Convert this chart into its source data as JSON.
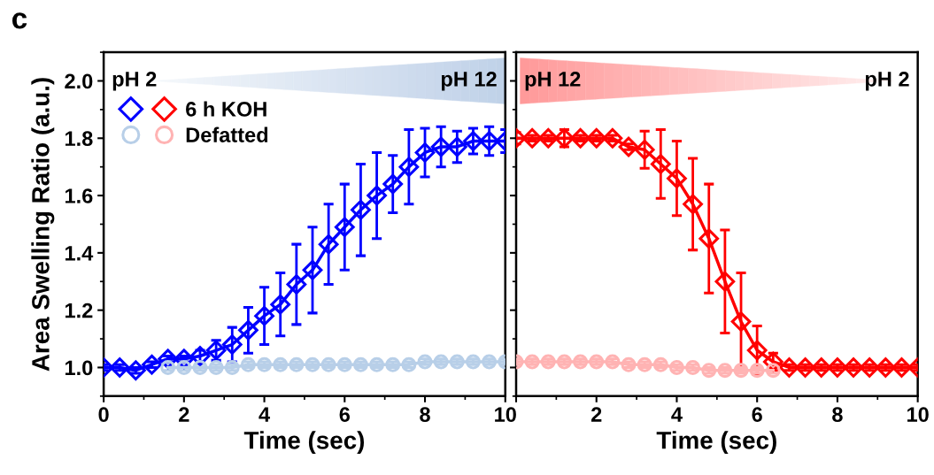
{
  "chart_data": [
    {
      "type": "line",
      "xlabel": "Time (sec)",
      "ylabel": "Area Swelling Ratio (a.u.)",
      "xlim": [
        0,
        10
      ],
      "xticks": [
        0,
        2,
        4,
        6,
        8,
        10
      ],
      "ylim": [
        0.9,
        2.1
      ],
      "yticks": [
        {
          "value": 1.0,
          "label": "1.0"
        },
        1.2,
        1.4,
        1.6,
        1.8,
        {
          "value": 2.0,
          "label": "2.0"
        }
      ],
      "grid": false,
      "annotations": [
        "c",
        "pH 2",
        "pH 12"
      ],
      "series": [
        {
          "color": "#0000ff",
          "marker": "diamond",
          "x": [
            0,
            0.4,
            0.8,
            1.2,
            1.6,
            2.0,
            2.4,
            2.8,
            3.2,
            3.6,
            4.0,
            4.4,
            4.8,
            5.2,
            5.6,
            6.0,
            6.4,
            6.8,
            7.2,
            7.6,
            8.0,
            8.4,
            8.8,
            9.2,
            9.6,
            10.0
          ],
          "values": [
            1.0,
            1.0,
            0.99,
            1.01,
            1.03,
            1.03,
            1.04,
            1.06,
            1.08,
            1.13,
            1.18,
            1.22,
            1.29,
            1.34,
            1.43,
            1.49,
            1.55,
            1.6,
            1.64,
            1.7,
            1.75,
            1.77,
            1.77,
            1.79,
            1.79,
            1.79
          ],
          "errors": [
            0.01,
            0.01,
            0.01,
            0.01,
            0.01,
            0.01,
            0.02,
            0.035,
            0.06,
            0.08,
            0.1,
            0.11,
            0.14,
            0.15,
            0.14,
            0.15,
            0.16,
            0.15,
            0.1,
            0.13,
            0.085,
            0.07,
            0.055,
            0.045,
            0.05,
            0.04
          ]
        },
        {
          "color": "#b8cfe8",
          "marker": "circle",
          "x": [
            1.6,
            2.0,
            2.4,
            2.8,
            3.2,
            3.6,
            4.0,
            4.4,
            4.8,
            5.2,
            5.6,
            6.0,
            6.4,
            6.8,
            7.2,
            7.6,
            8.0,
            8.4,
            8.8,
            9.2,
            9.6,
            10.0
          ],
          "values": [
            1.0,
            1.0,
            1.0,
            1.0,
            1.0,
            1.01,
            1.01,
            1.01,
            1.01,
            1.01,
            1.01,
            1.01,
            1.01,
            1.01,
            1.01,
            1.01,
            1.02,
            1.02,
            1.02,
            1.02,
            1.02,
            1.02
          ],
          "errors": [
            0.01,
            0.01,
            0.01,
            0.01,
            0.01,
            0.01,
            0.01,
            0.01,
            0.01,
            0.01,
            0.01,
            0.01,
            0.01,
            0.01,
            0.01,
            0.01,
            0.01,
            0.01,
            0.01,
            0.01,
            0.01,
            0.01
          ]
        }
      ]
    },
    {
      "type": "line",
      "xlabel": "Time (sec)",
      "xlim": [
        0,
        10
      ],
      "xticks": [
        {
          "value": 0,
          "label": null
        },
        2,
        4,
        6,
        8,
        10
      ],
      "ylim": [
        0.9,
        2.1
      ],
      "yticks": [
        1.0,
        1.2,
        1.4,
        1.6,
        1.8,
        2.0
      ],
      "tick_labels": "x",
      "grid": false,
      "legend": "top left",
      "annotations": [
        "pH 12",
        "pH 2"
      ],
      "series": [
        {
          "name": "6 h KOH",
          "color": "#ff0000",
          "marker": "diamond",
          "x": [
            0,
            0.4,
            0.8,
            1.2,
            1.6,
            2.0,
            2.4,
            2.8,
            3.2,
            3.6,
            4.0,
            4.4,
            4.8,
            5.2,
            5.6,
            6.0,
            6.4,
            6.8,
            7.2,
            7.6,
            8.0,
            8.4,
            8.8,
            9.2,
            9.6,
            10.0
          ],
          "values": [
            1.8,
            1.8,
            1.8,
            1.8,
            1.8,
            1.8,
            1.8,
            1.77,
            1.76,
            1.71,
            1.66,
            1.57,
            1.45,
            1.3,
            1.16,
            1.06,
            1.02,
            1.0,
            1.0,
            1.0,
            1.0,
            1.0,
            1.0,
            1.0,
            1.0,
            1.0
          ],
          "errors": [
            0.02,
            0.01,
            0.01,
            0.03,
            0.01,
            0.01,
            0.01,
            0.01,
            0.065,
            0.12,
            0.13,
            0.16,
            0.19,
            0.18,
            0.17,
            0.085,
            0.03,
            0.01,
            0.01,
            0.01,
            0.01,
            0.01,
            0.01,
            0.01,
            0.01,
            0.01
          ]
        },
        {
          "name": "Defatted",
          "color": "#ffb3b3",
          "marker": "circle",
          "x": [
            0,
            0.4,
            0.8,
            1.2,
            1.6,
            2.0,
            2.4,
            2.8,
            3.2,
            3.6,
            4.0,
            4.4,
            4.8,
            5.2,
            5.6,
            6.0,
            6.4
          ],
          "values": [
            1.02,
            1.02,
            1.02,
            1.02,
            1.02,
            1.02,
            1.02,
            1.01,
            1.01,
            1.01,
            1.0,
            1.0,
            0.99,
            0.99,
            0.99,
            0.99,
            0.99
          ],
          "errors": [
            0.01,
            0.01,
            0.01,
            0.01,
            0.01,
            0.01,
            0.01,
            0.01,
            0.01,
            0.01,
            0.01,
            0.01,
            0.01,
            0.01,
            0.01,
            0.01,
            0.01
          ]
        }
      ]
    }
  ]
}
